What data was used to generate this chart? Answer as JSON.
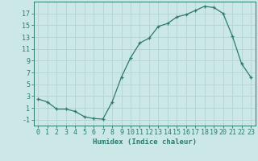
{
  "x": [
    0,
    1,
    2,
    3,
    4,
    5,
    6,
    7,
    8,
    9,
    10,
    11,
    12,
    13,
    14,
    15,
    16,
    17,
    18,
    19,
    20,
    21,
    22,
    23
  ],
  "y": [
    2.5,
    2.0,
    0.8,
    0.8,
    0.4,
    -0.5,
    -0.8,
    -0.9,
    2.0,
    6.2,
    9.5,
    12.0,
    12.8,
    14.8,
    15.3,
    16.4,
    16.8,
    17.5,
    18.2,
    18.0,
    17.0,
    13.2,
    8.5,
    6.2
  ],
  "xlabel": "Humidex (Indice chaleur)",
  "xlim": [
    -0.5,
    23.5
  ],
  "ylim": [
    -2,
    19
  ],
  "yticks": [
    -1,
    1,
    3,
    5,
    7,
    9,
    11,
    13,
    15,
    17
  ],
  "xticks": [
    0,
    1,
    2,
    3,
    4,
    5,
    6,
    7,
    8,
    9,
    10,
    11,
    12,
    13,
    14,
    15,
    16,
    17,
    18,
    19,
    20,
    21,
    22,
    23
  ],
  "line_color": "#2d7a6e",
  "marker": "+",
  "bg_color": "#cce8e6",
  "grid_color": "#b0d4d2",
  "label_fontsize": 6.5,
  "tick_fontsize": 6.0
}
